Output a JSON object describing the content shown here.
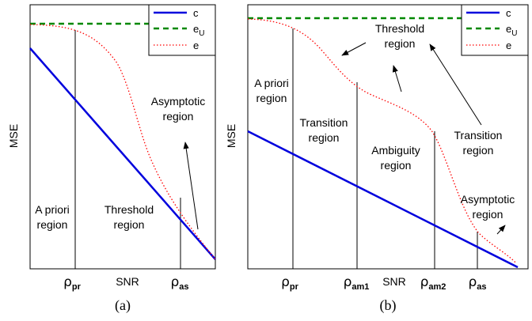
{
  "panels": [
    {
      "caption": "(a)",
      "ylabel": "MSE",
      "xlabel": "SNR",
      "legend": {
        "c": "c",
        "eU": "e",
        "eU_sub": "U",
        "e": "e"
      },
      "regions": {
        "apriori_1": "A priori",
        "apriori_2": "region",
        "threshold_1": "Threshold",
        "threshold_2": "region",
        "asymptotic_1": "Asymptotic",
        "asymptotic_2": "region"
      },
      "ticks": {
        "pr_sym": "ρ",
        "pr_sub": "pr",
        "as_sym": "ρ",
        "as_sub": "as"
      }
    },
    {
      "caption": "(b)",
      "ylabel": "MSE",
      "xlabel": "SNR",
      "legend": {
        "c": "c",
        "eU": "e",
        "eU_sub": "U",
        "e": "e"
      },
      "regions": {
        "apriori_1": "A priori",
        "apriori_2": "region",
        "transition_1": "Transition",
        "transition_2": "region",
        "threshold_1": "Threshold",
        "threshold_2": "region",
        "ambiguity_1": "Ambiguity",
        "ambiguity_2": "region",
        "transition2_1": "Transition",
        "transition2_2": "region",
        "asymptotic_1": "Asymptotic",
        "asymptotic_2": "region"
      },
      "ticks": {
        "pr_sym": "ρ",
        "pr_sub": "pr",
        "am1_sym": "ρ",
        "am1_sub": "am1",
        "am2_sym": "ρ",
        "am2_sub": "am2",
        "as_sym": "ρ",
        "as_sub": "as"
      }
    }
  ],
  "colors": {
    "c": "#0000dd",
    "eU": "#008800",
    "e": "#ff0000"
  }
}
